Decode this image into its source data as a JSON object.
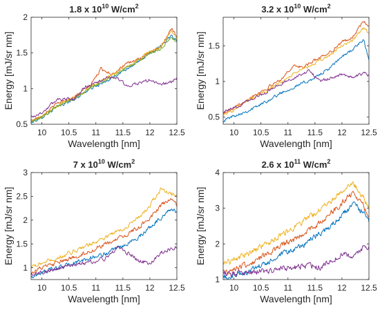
{
  "figure": {
    "panels": [
      {
        "title_main": "1.8 x 10",
        "title_exp": "10",
        "title_unit": " W/cm",
        "title_unit_exp": "2"
      },
      {
        "title_main": "3.2 x 10",
        "title_exp": "10",
        "title_unit": " W/cm",
        "title_unit_exp": "2"
      },
      {
        "title_main": "7 x 10",
        "title_exp": "10",
        "title_unit": " W/cm",
        "title_unit_exp": "2"
      },
      {
        "title_main": "2.6 x 10",
        "title_exp": "11",
        "title_unit": " W/cm",
        "title_unit_exp": "2"
      }
    ]
  },
  "chart_data": [
    {
      "type": "line",
      "title": "1.8 x 10^10 W/cm^2",
      "xlabel": "Wavelength [nm]",
      "ylabel": "Energy [mJ/sr nm]",
      "xlim": [
        9.8,
        12.5
      ],
      "ylim": [
        0.5,
        2
      ],
      "xticks": [
        10,
        10.5,
        11,
        11.5,
        12,
        12.5
      ],
      "xtick_labels": [
        "10",
        "10.5",
        "11",
        "11.5",
        "12",
        "12.5"
      ],
      "yticks": [
        0.5,
        1,
        1.5,
        2
      ],
      "ytick_labels": [
        "0.5",
        "1",
        "1.5",
        "2"
      ],
      "grid": false,
      "legend": "none",
      "noise": 0.018,
      "series": [
        {
          "color": "#0072BD",
          "x": [
            9.8,
            10.0,
            10.3,
            10.6,
            10.9,
            11.2,
            11.5,
            11.8,
            12.0,
            12.2,
            12.4,
            12.5
          ],
          "values": [
            0.52,
            0.6,
            0.75,
            0.85,
            1.0,
            1.1,
            1.25,
            1.38,
            1.5,
            1.6,
            1.75,
            1.68
          ]
        },
        {
          "color": "#D95319",
          "x": [
            9.8,
            10.0,
            10.3,
            10.6,
            10.9,
            11.1,
            11.3,
            11.5,
            11.8,
            12.0,
            12.2,
            12.4,
            12.5
          ],
          "values": [
            0.55,
            0.62,
            0.8,
            0.88,
            1.05,
            1.28,
            1.2,
            1.32,
            1.42,
            1.5,
            1.58,
            1.85,
            1.72
          ]
        },
        {
          "color": "#EDB120",
          "x": [
            9.8,
            10.0,
            10.3,
            10.6,
            10.9,
            11.2,
            11.5,
            11.8,
            12.0,
            12.2,
            12.4,
            12.5
          ],
          "values": [
            0.54,
            0.61,
            0.77,
            0.87,
            1.02,
            1.15,
            1.27,
            1.4,
            1.52,
            1.58,
            1.8,
            1.7
          ]
        },
        {
          "color": "#77AC30",
          "x": [
            9.8,
            10.0,
            10.3,
            10.6,
            10.9,
            11.2,
            11.5,
            11.8,
            12.0,
            12.2,
            12.4,
            12.5
          ],
          "values": [
            0.53,
            0.6,
            0.76,
            0.86,
            1.01,
            1.12,
            1.26,
            1.39,
            1.5,
            1.55,
            1.72,
            1.65
          ]
        },
        {
          "color": "#7E2F8E",
          "x": [
            9.8,
            10.0,
            10.3,
            10.6,
            10.8,
            11.0,
            11.2,
            11.4,
            11.6,
            11.8,
            12.0,
            12.2,
            12.4,
            12.5
          ],
          "values": [
            0.6,
            0.66,
            0.86,
            0.85,
            1.02,
            1.08,
            1.15,
            1.15,
            1.02,
            1.08,
            1.12,
            1.05,
            1.1,
            1.15
          ]
        }
      ]
    },
    {
      "type": "line",
      "title": "3.2 x 10^10 W/cm^2",
      "xlabel": "Wavelength [nm]",
      "ylabel": "Energy [mJ/sr nm]",
      "xlim": [
        9.8,
        12.5
      ],
      "ylim": [
        0.4,
        1.9
      ],
      "xticks": [
        10,
        10.5,
        11,
        11.5,
        12,
        12.5
      ],
      "xtick_labels": [
        "10",
        "10.5",
        "11",
        "11.5",
        "12",
        "12.5"
      ],
      "yticks": [
        0.5,
        1,
        1.5
      ],
      "ytick_labels": [
        "0.5",
        "1",
        "1.5"
      ],
      "grid": false,
      "legend": "none",
      "noise": 0.018,
      "series": [
        {
          "color": "#0072BD",
          "x": [
            9.8,
            10.0,
            10.3,
            10.6,
            10.9,
            11.2,
            11.5,
            11.8,
            12.0,
            12.2,
            12.4,
            12.5
          ],
          "values": [
            0.45,
            0.52,
            0.6,
            0.72,
            0.85,
            0.95,
            1.05,
            1.2,
            1.35,
            1.45,
            1.58,
            1.3
          ]
        },
        {
          "color": "#D95319",
          "x": [
            9.8,
            10.0,
            10.3,
            10.6,
            10.9,
            11.1,
            11.3,
            11.5,
            11.8,
            12.0,
            12.2,
            12.4,
            12.5
          ],
          "values": [
            0.55,
            0.62,
            0.78,
            0.9,
            1.05,
            1.22,
            1.2,
            1.3,
            1.42,
            1.55,
            1.62,
            1.85,
            1.75
          ]
        },
        {
          "color": "#EDB120",
          "x": [
            9.8,
            10.0,
            10.3,
            10.6,
            10.9,
            11.2,
            11.5,
            11.8,
            12.0,
            12.2,
            12.4,
            12.5
          ],
          "values": [
            0.54,
            0.6,
            0.75,
            0.87,
            1.0,
            1.15,
            1.25,
            1.38,
            1.5,
            1.58,
            1.75,
            1.68
          ]
        },
        {
          "color": "#7E2F8E",
          "x": [
            9.8,
            10.0,
            10.3,
            10.6,
            10.9,
            11.2,
            11.4,
            11.6,
            11.8,
            12.0,
            12.2,
            12.4,
            12.5
          ],
          "values": [
            0.58,
            0.62,
            0.75,
            0.85,
            0.98,
            1.08,
            1.15,
            1.0,
            1.05,
            1.1,
            1.05,
            1.12,
            1.08
          ]
        }
      ]
    },
    {
      "type": "line",
      "title": "7 x 10^10 W/cm^2",
      "xlabel": "Wavelength [nm]",
      "ylabel": "Energy [mJ/sr nm]",
      "xlim": [
        9.8,
        12.5
      ],
      "ylim": [
        0.75,
        3
      ],
      "xticks": [
        10,
        10.5,
        11,
        11.5,
        12,
        12.5
      ],
      "xtick_labels": [
        "10",
        "10.5",
        "11",
        "11.5",
        "12",
        "12.5"
      ],
      "yticks": [
        1,
        1.5,
        2,
        2.5,
        3
      ],
      "ytick_labels": [
        "1",
        "1.5",
        "2",
        "2.5",
        "3"
      ],
      "grid": false,
      "legend": "none",
      "noise": 0.025,
      "series": [
        {
          "color": "#0072BD",
          "x": [
            9.8,
            10.0,
            10.3,
            10.6,
            10.9,
            11.2,
            11.5,
            11.8,
            12.0,
            12.2,
            12.4,
            12.5
          ],
          "values": [
            0.8,
            0.9,
            1.0,
            1.1,
            1.2,
            1.3,
            1.45,
            1.65,
            1.85,
            2.05,
            2.25,
            2.15
          ]
        },
        {
          "color": "#D95319",
          "x": [
            9.8,
            10.0,
            10.3,
            10.6,
            10.9,
            11.2,
            11.5,
            11.8,
            12.0,
            12.2,
            12.4,
            12.5
          ],
          "values": [
            0.9,
            1.0,
            1.1,
            1.22,
            1.35,
            1.5,
            1.65,
            1.85,
            2.05,
            2.3,
            2.45,
            2.3
          ]
        },
        {
          "color": "#EDB120",
          "x": [
            9.8,
            10.0,
            10.3,
            10.6,
            10.9,
            11.2,
            11.5,
            11.8,
            12.0,
            12.2,
            12.4,
            12.5
          ],
          "values": [
            1.0,
            1.1,
            1.2,
            1.35,
            1.5,
            1.65,
            1.82,
            2.05,
            2.3,
            2.65,
            2.55,
            2.5
          ]
        },
        {
          "color": "#7E2F8E",
          "x": [
            9.8,
            10.0,
            10.3,
            10.6,
            10.9,
            11.2,
            11.4,
            11.6,
            11.8,
            12.0,
            12.2,
            12.4,
            12.5
          ],
          "values": [
            0.85,
            0.9,
            0.98,
            1.05,
            1.12,
            1.2,
            1.45,
            1.3,
            1.15,
            1.1,
            1.3,
            1.4,
            1.45
          ]
        }
      ]
    },
    {
      "type": "line",
      "title": "2.6 x 10^11 W/cm^2",
      "xlabel": "Wavelength [nm]",
      "ylabel": "Energy [mJ/sr nm]",
      "xlim": [
        9.8,
        12.5
      ],
      "ylim": [
        1,
        4
      ],
      "xticks": [
        10,
        10.5,
        11,
        11.5,
        12,
        12.5
      ],
      "xtick_labels": [
        "10",
        "10.5",
        "11",
        "11.5",
        "12",
        "12.5"
      ],
      "yticks": [
        1,
        2,
        3,
        4
      ],
      "ytick_labels": [
        "1",
        "2",
        "3",
        "4"
      ],
      "grid": false,
      "legend": "none",
      "noise": 0.035,
      "series": [
        {
          "color": "#0072BD",
          "x": [
            9.8,
            10.0,
            10.3,
            10.6,
            10.9,
            11.2,
            11.5,
            11.8,
            12.0,
            12.2,
            12.4,
            12.5
          ],
          "values": [
            1.05,
            1.1,
            1.25,
            1.45,
            1.7,
            1.9,
            2.2,
            2.5,
            2.8,
            3.1,
            2.9,
            2.6
          ]
        },
        {
          "color": "#D95319",
          "x": [
            9.8,
            10.0,
            10.3,
            10.6,
            10.9,
            11.2,
            11.5,
            11.8,
            12.0,
            12.2,
            12.4,
            12.5
          ],
          "values": [
            1.2,
            1.3,
            1.45,
            1.7,
            1.95,
            2.2,
            2.5,
            2.85,
            3.15,
            3.45,
            3.1,
            2.75
          ]
        },
        {
          "color": "#EDB120",
          "x": [
            9.8,
            10.0,
            10.3,
            10.6,
            10.9,
            11.2,
            11.5,
            11.8,
            12.0,
            12.2,
            12.4,
            12.5
          ],
          "values": [
            1.45,
            1.55,
            1.75,
            2.0,
            2.25,
            2.55,
            2.85,
            3.2,
            3.5,
            3.75,
            3.3,
            3.0
          ]
        },
        {
          "color": "#7E2F8E",
          "x": [
            9.8,
            10.0,
            10.3,
            10.6,
            10.9,
            11.2,
            11.4,
            11.6,
            11.8,
            12.0,
            12.2,
            12.4,
            12.5
          ],
          "values": [
            1.15,
            1.15,
            1.2,
            1.25,
            1.3,
            1.35,
            1.4,
            1.35,
            1.55,
            1.7,
            1.65,
            1.9,
            1.95
          ]
        }
      ]
    }
  ]
}
